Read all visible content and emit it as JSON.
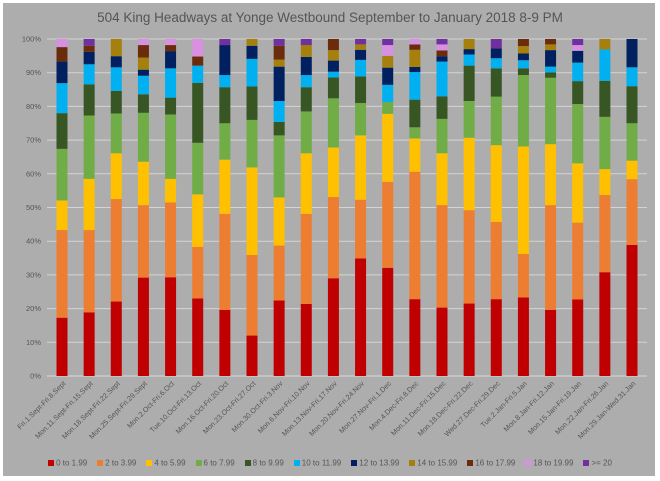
{
  "chart_data": {
    "type": "bar",
    "stacked": "percent",
    "title": "504 King Headways at Yonge Westbound September to January 2018 8-9 PM",
    "xlabel": "",
    "ylabel": "",
    "ylim": [
      0,
      100
    ],
    "yticks": [
      "0%",
      "10%",
      "20%",
      "30%",
      "40%",
      "50%",
      "60%",
      "70%",
      "80%",
      "90%",
      "100%"
    ],
    "grid": true,
    "legend_position": "bottom",
    "categories": [
      "Fri.1.Sept-Fri.8.Sept",
      "Mon.11.Sept-Fri.15.Sept",
      "Mon.18.Sept-Fri.22.Sept",
      "Mon.25.Sept-Fri.29.Sept",
      "Mon.2.Oct-Fri.6.Oct",
      "Tue.10.Oct-Fri.13.Oct",
      "Mon.16.Oct-Fri.20.Oct",
      "Mon.23.Oct-Fri.27.Oct",
      "Mon.30.Oct-Fri.3.Nov",
      "Mon.6.Nov-Fri.10.Nov",
      "Mon.13.Nov-Fri.17.Nov",
      "Mon.20.Nov-Fri.24.Nov",
      "Mon.27.Nov-Fri.1.Dec",
      "Mon.4.Dec-Fri.8.Dec",
      "Mon.11.Dec-Fri.15.Dec",
      "Mon.18.Dec-Fri.22.Dec",
      "Wed.27.Dec-Fri.29.Dec",
      "Tue.2.Jan-Fri.5.Jan",
      "Mon.8.Jan-Fri.12.Jan",
      "Mon.15.Jan-Fri.19.Jan",
      "Mon.22.Jan-Fri.26.Jan",
      "Mon.29.Jan-Wed.31.Jan"
    ],
    "series": [
      {
        "name": "0 to 1.99",
        "color": "#c00000",
        "values": [
          17.3,
          18.9,
          22.1,
          29.2,
          29.3,
          23.0,
          19.6,
          12.0,
          22.4,
          21.4,
          29.0,
          34.9,
          32.1,
          22.8,
          20.3,
          21.5,
          22.8,
          23.3,
          19.6,
          22.7,
          30.8,
          38.9
        ]
      },
      {
        "name": "2 to 3.99",
        "color": "#ed7d31",
        "values": [
          26.0,
          24.4,
          30.4,
          21.5,
          22.2,
          15.3,
          28.5,
          23.9,
          16.3,
          26.7,
          24.1,
          17.4,
          25.5,
          37.8,
          30.4,
          27.7,
          22.9,
          12.9,
          31.1,
          22.8,
          22.9,
          19.5
        ]
      },
      {
        "name": "4 to 5.99",
        "color": "#ffc000",
        "values": [
          8.8,
          15.2,
          13.6,
          12.9,
          7.0,
          15.6,
          16.1,
          26.0,
          14.3,
          18.0,
          14.7,
          19.1,
          20.2,
          9.9,
          15.4,
          21.5,
          22.8,
          31.9,
          18.1,
          17.6,
          7.7,
          5.5
        ]
      },
      {
        "name": "6 to 7.99",
        "color": "#70ad47",
        "values": [
          15.3,
          18.8,
          11.8,
          14.5,
          19.1,
          15.3,
          10.8,
          14.1,
          18.4,
          12.4,
          14.6,
          9.6,
          3.5,
          3.3,
          10.2,
          10.9,
          14.4,
          21.2,
          19.7,
          17.6,
          15.5,
          11.1
        ]
      },
      {
        "name": "8 to 9.99",
        "color": "#375623",
        "values": [
          10.6,
          9.2,
          6.7,
          5.5,
          5.0,
          17.8,
          10.7,
          9.9,
          4.0,
          7.2,
          6.2,
          7.9,
          0,
          8.2,
          6.7,
          10.5,
          8.4,
          2.0,
          1.6,
          6.8,
          10.7,
          11.0
        ]
      },
      {
        "name": "10 to 11.99",
        "color": "#00b0f0",
        "values": [
          8.9,
          6.0,
          7.0,
          5.5,
          8.7,
          5.1,
          3.6,
          8.2,
          6.2,
          3.6,
          1.7,
          4.9,
          5.1,
          8.2,
          10.3,
          3.3,
          3.0,
          2.4,
          1.7,
          5.5,
          9.3,
          5.6
        ]
      },
      {
        "name": "12 to 13.99",
        "color": "#002060",
        "values": [
          6.4,
          3.7,
          3.3,
          1.8,
          5.1,
          0,
          8.9,
          3.9,
          10.2,
          5.4,
          3.3,
          3.0,
          5.1,
          1.5,
          1.6,
          1.6,
          2.9,
          2.0,
          4.9,
          3.5,
          0,
          8.4
        ]
      },
      {
        "name": "14 to 15.99",
        "color": "#a5800c",
        "values": [
          0,
          0,
          5.1,
          3.6,
          0,
          0,
          0,
          2.0,
          2.1,
          3.5,
          3.1,
          1.6,
          3.5,
          5.1,
          0,
          3.0,
          0,
          2.2,
          1.7,
          0,
          3.1,
          0
        ]
      },
      {
        "name": "16 to 17.99",
        "color": "#6b2c0c",
        "values": [
          4.3,
          1.8,
          0,
          3.7,
          1.8,
          2.7,
          0,
          0,
          4.1,
          0,
          3.3,
          0,
          0,
          1.6,
          1.7,
          0,
          0,
          2.1,
          1.6,
          0,
          0,
          0
        ]
      },
      {
        "name": "18 to 19.99",
        "color": "#d891e0",
        "values": [
          2.4,
          0,
          0,
          1.8,
          1.8,
          5.2,
          0,
          0,
          0,
          0,
          0,
          0,
          3.2,
          1.6,
          1.8,
          0,
          0,
          0,
          0,
          1.7,
          0,
          0
        ]
      },
      {
        "name": ">= 20",
        "color": "#7030a0",
        "values": [
          0,
          2.0,
          0,
          0,
          0,
          0,
          1.8,
          0,
          2.0,
          1.8,
          0,
          1.6,
          1.8,
          0,
          1.6,
          0,
          2.8,
          0,
          0,
          1.8,
          0,
          0
        ]
      }
    ]
  }
}
